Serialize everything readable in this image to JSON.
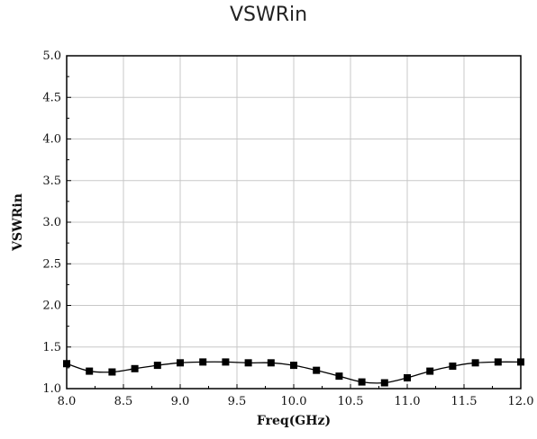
{
  "chart_data": {
    "type": "line",
    "title": "VSWRin",
    "xlabel": "Freq(GHz)",
    "ylabel": "VSWRin",
    "xlim": [
      8.0,
      12.0
    ],
    "ylim": [
      1.0,
      5.0
    ],
    "grid": true,
    "legend": "none",
    "x_tick_labels": [
      "8.0",
      "8.5",
      "9.0",
      "9.5",
      "10.0",
      "10.5",
      "11.0",
      "11.5",
      "12.0"
    ],
    "y_tick_labels": [
      "1.0",
      "1.5",
      "2.0",
      "2.5",
      "3.0",
      "3.5",
      "4.0",
      "4.5",
      "5.0"
    ],
    "series": [
      {
        "marker": "square",
        "color": "#000000",
        "x": [
          8.0,
          8.2,
          8.4,
          8.6,
          8.8,
          9.0,
          9.2,
          9.4,
          9.6,
          9.8,
          10.0,
          10.2,
          10.4,
          10.6,
          10.8,
          11.0,
          11.2,
          11.4,
          11.6,
          11.8,
          12.0
        ],
        "y": [
          1.3,
          1.21,
          1.2,
          1.24,
          1.28,
          1.31,
          1.32,
          1.32,
          1.31,
          1.31,
          1.28,
          1.22,
          1.15,
          1.08,
          1.07,
          1.13,
          1.21,
          1.27,
          1.31,
          1.32,
          1.32
        ]
      }
    ]
  },
  "colors": {
    "grid": "#c8c8c8",
    "axis": "#000000",
    "series": "#000000"
  }
}
